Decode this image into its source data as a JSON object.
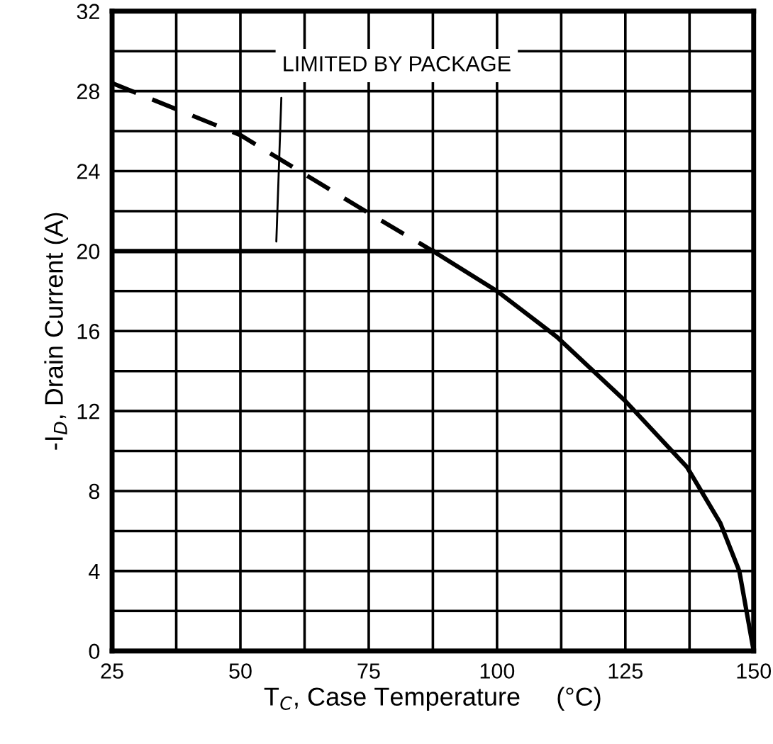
{
  "chart_data": {
    "type": "line",
    "xlabel": "T$_{C}$, Case Temperature     (°C)",
    "ylabel": "-I$_{D}$, Drain Current (A)",
    "xlim": [
      25,
      150
    ],
    "ylim": [
      0,
      32
    ],
    "xticks": [
      25,
      {
        "value": 37.5,
        "label": null
      },
      50,
      {
        "value": 62.5,
        "label": null
      },
      75,
      {
        "value": 87.5,
        "label": null
      },
      100,
      {
        "value": 112.5,
        "label": null
      },
      125,
      {
        "value": 137.5,
        "label": null
      },
      150
    ],
    "yticks": [
      0,
      {
        "value": 2,
        "label": null
      },
      4,
      {
        "value": 6,
        "label": null
      },
      8,
      {
        "value": 10,
        "label": null
      },
      12,
      {
        "value": 14,
        "label": null
      },
      16,
      {
        "value": 18,
        "label": null
      },
      20,
      {
        "value": 22,
        "label": null
      },
      24,
      {
        "value": 26,
        "label": null
      },
      28,
      {
        "value": 30,
        "label": null
      },
      32
    ],
    "grid": true,
    "series": [
      {
        "color": "#000000",
        "line_style": "solid",
        "x": [
          25,
          87.5
        ],
        "values": [
          20,
          20
        ]
      },
      {
        "color": "#000000",
        "line_style": "dashed",
        "x": [
          25,
          50,
          75,
          87.5
        ],
        "values": [
          28.4,
          25.8,
          21.9,
          20
        ]
      },
      {
        "color": "#000000",
        "line_style": "solid",
        "x": [
          87.5,
          100,
          111.7,
          125,
          137,
          143.5,
          147.2,
          150
        ],
        "values": [
          20,
          18,
          15.7,
          12.5,
          9.2,
          6.4,
          4,
          0
        ]
      }
    ],
    "annotations": [
      "LIMITED BY PACKAGE"
    ]
  }
}
